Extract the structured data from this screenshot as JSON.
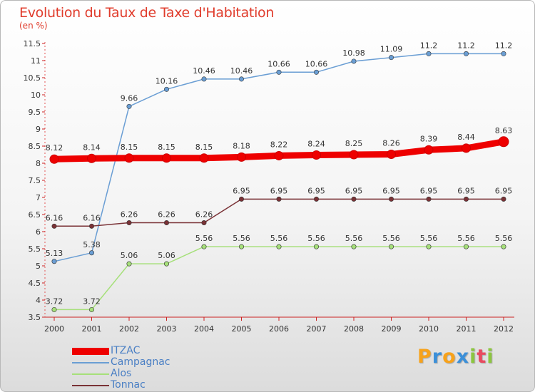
{
  "title": "Evolution du Taux de Taxe d'Habitation",
  "unit": "(en %)",
  "logo": {
    "letters": [
      "P",
      "r",
      "o",
      "x",
      "i",
      "t",
      "i"
    ],
    "colors": [
      "#f7a21b",
      "#3b8fd8",
      "#f7a21b",
      "#3b8fd8",
      "#8cc63f",
      "#e84a5f",
      "#8cc63f"
    ]
  },
  "chart_data": {
    "type": "line",
    "title": "Evolution du Taux de Taxe d'Habitation",
    "ylabel": "(en %)",
    "xlabel": "",
    "x": [
      "2000",
      "2001",
      "2002",
      "2003",
      "2004",
      "2005",
      "2006",
      "2007",
      "2008",
      "2009",
      "2010",
      "2011",
      "2012"
    ],
    "ylim": [
      3.5,
      11.5
    ],
    "yticks": [
      "3.5",
      "4",
      "4.5",
      "5",
      "5.5",
      "6",
      "6.5",
      "7",
      "7.5",
      "8",
      "8.5",
      "9",
      "9.5",
      "10",
      "10.5",
      "11",
      "11.5"
    ],
    "grid": false,
    "legend_position": "bottom-left",
    "series": [
      {
        "name": "ITZAC",
        "color": "#ee0000",
        "emphasis": true,
        "values": [
          8.12,
          8.14,
          8.15,
          8.15,
          8.15,
          8.18,
          8.22,
          8.24,
          8.25,
          8.26,
          8.39,
          8.44,
          8.63
        ],
        "labels": [
          "8.12",
          "8.14",
          "8.15",
          "8.15",
          "8.15",
          "8.18",
          "8.22",
          "8.24",
          "8.25",
          "8.26",
          "8.39",
          "8.44",
          "8.63"
        ]
      },
      {
        "name": "Campagnac",
        "color": "#6a9ed4",
        "emphasis": false,
        "values": [
          5.13,
          5.38,
          9.66,
          10.16,
          10.46,
          10.46,
          10.66,
          10.66,
          10.98,
          11.09,
          11.2,
          11.2,
          11.2
        ],
        "labels": [
          "5.13",
          "5.38",
          "9.66",
          "10.16",
          "10.46",
          "10.46",
          "10.66",
          "10.66",
          "10.98",
          "11.09",
          "11.2",
          "11.2",
          "11.2"
        ]
      },
      {
        "name": "Alos",
        "color": "#a6e07a",
        "emphasis": false,
        "values": [
          3.72,
          3.72,
          5.06,
          5.06,
          5.56,
          5.56,
          5.56,
          5.56,
          5.56,
          5.56,
          5.56,
          5.56,
          5.56
        ],
        "labels": [
          "3.72",
          "3.72",
          "5.06",
          "5.06",
          "5.56",
          "5.56",
          "5.56",
          "5.56",
          "5.56",
          "5.56",
          "5.56",
          "5.56",
          "5.56"
        ]
      },
      {
        "name": "Tonnac",
        "color": "#7a3236",
        "emphasis": false,
        "values": [
          6.16,
          6.16,
          6.26,
          6.26,
          6.26,
          6.95,
          6.95,
          6.95,
          6.95,
          6.95,
          6.95,
          6.95,
          6.95
        ],
        "labels": [
          "6.16",
          "6.16",
          "6.26",
          "6.26",
          "6.26",
          "6.95",
          "6.95",
          "6.95",
          "6.95",
          "6.95",
          "6.95",
          "6.95",
          "6.95"
        ]
      }
    ]
  }
}
